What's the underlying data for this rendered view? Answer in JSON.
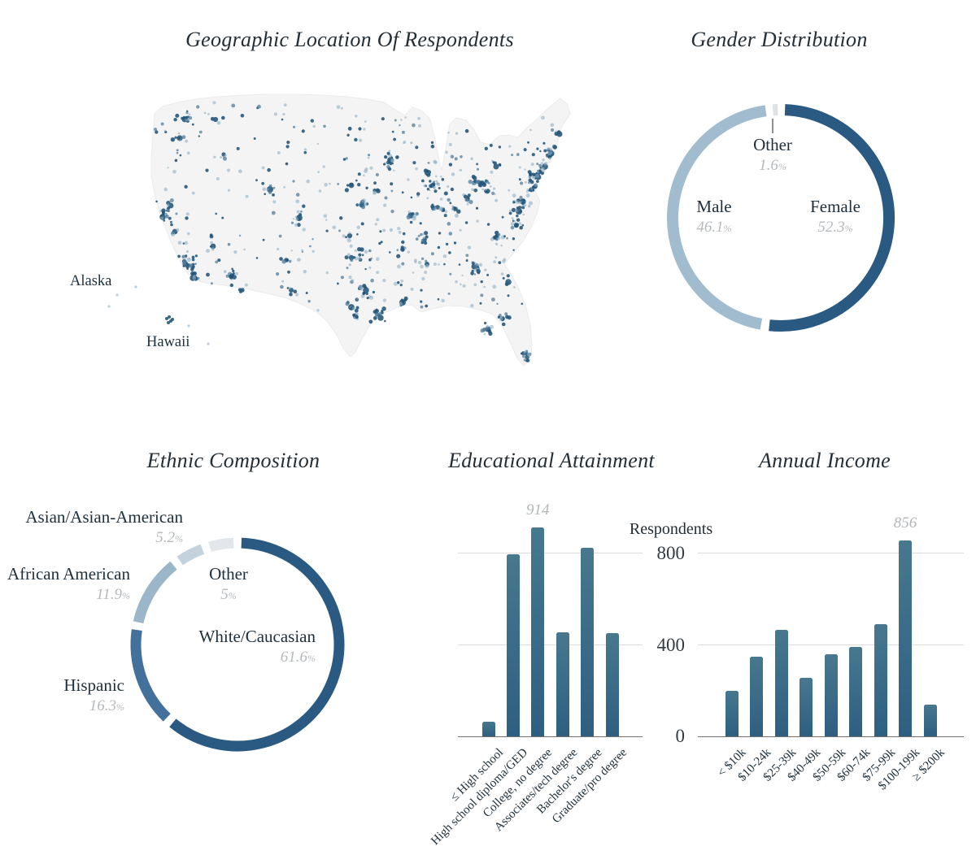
{
  "percent_sign": "%",
  "colors": {
    "donut_dark_blue": "#2a5a82",
    "donut_medium_blue": "#44719b",
    "donut_light_blue": "#a2bccf",
    "donut_pale_blue": "#c4d2dd",
    "donut_pale_gray": "#e3e7eb",
    "bar_top": "#47788e",
    "bar_bottom": "#2e5f81",
    "dot_dark": "#225479",
    "dot_light": "#8fafc3",
    "dot_mid": "#527e9c",
    "map_fill": "#f4f4f4",
    "gridline": "#dcdcdc",
    "axis_line": "#707070",
    "value_gray": "#b5b9bc"
  },
  "chart_data": [
    {
      "id": "geo_map",
      "type": "scatter",
      "title": "Geographic Location Of Respondents",
      "alaska_label": "Alaska",
      "hawaii_label": "Hawaii",
      "description": "Dot-density map of respondent locations across the contiguous United States, Alaska and Hawaii; dense clusters along the Northeast corridor, California coast, Texas metros, Florida and Midwest cities.",
      "clusters": [
        {
          "name": "seattle",
          "x": 187,
          "y": 62,
          "n": 12,
          "s": 5
        },
        {
          "name": "portland",
          "x": 181,
          "y": 85,
          "n": 8,
          "s": 4
        },
        {
          "name": "spokane",
          "x": 225,
          "y": 62,
          "n": 3,
          "s": 3
        },
        {
          "name": "san-francisco",
          "x": 160,
          "y": 182,
          "n": 18,
          "s": 6
        },
        {
          "name": "sacramento",
          "x": 170,
          "y": 168,
          "n": 6,
          "s": 4
        },
        {
          "name": "fresno",
          "x": 175,
          "y": 200,
          "n": 4,
          "s": 3
        },
        {
          "name": "los-angeles",
          "x": 188,
          "y": 240,
          "n": 26,
          "s": 8
        },
        {
          "name": "san-diego",
          "x": 197,
          "y": 257,
          "n": 9,
          "s": 4
        },
        {
          "name": "las-vegas",
          "x": 222,
          "y": 218,
          "n": 6,
          "s": 4
        },
        {
          "name": "phoenix",
          "x": 248,
          "y": 256,
          "n": 12,
          "s": 5
        },
        {
          "name": "tucson",
          "x": 258,
          "y": 272,
          "n": 4,
          "s": 3
        },
        {
          "name": "salt-lake-city",
          "x": 292,
          "y": 148,
          "n": 8,
          "s": 4
        },
        {
          "name": "boise",
          "x": 235,
          "y": 105,
          "n": 4,
          "s": 3
        },
        {
          "name": "denver",
          "x": 328,
          "y": 183,
          "n": 12,
          "s": 5
        },
        {
          "name": "albuquerque",
          "x": 312,
          "y": 235,
          "n": 5,
          "s": 4
        },
        {
          "name": "el-paso",
          "x": 318,
          "y": 272,
          "n": 4,
          "s": 3
        },
        {
          "name": "dallas",
          "x": 410,
          "y": 272,
          "n": 16,
          "s": 6
        },
        {
          "name": "austin",
          "x": 392,
          "y": 293,
          "n": 8,
          "s": 4
        },
        {
          "name": "san-antonio",
          "x": 397,
          "y": 304,
          "n": 9,
          "s": 4
        },
        {
          "name": "houston",
          "x": 428,
          "y": 306,
          "n": 15,
          "s": 6
        },
        {
          "name": "oklahoma-city",
          "x": 392,
          "y": 232,
          "n": 7,
          "s": 4
        },
        {
          "name": "tulsa",
          "x": 405,
          "y": 222,
          "n": 5,
          "s": 3
        },
        {
          "name": "wichita",
          "x": 390,
          "y": 205,
          "n": 4,
          "s": 3
        },
        {
          "name": "kansas-city",
          "x": 405,
          "y": 167,
          "n": 9,
          "s": 4
        },
        {
          "name": "omaha",
          "x": 392,
          "y": 143,
          "n": 5,
          "s": 3
        },
        {
          "name": "minneapolis",
          "x": 440,
          "y": 112,
          "n": 12,
          "s": 5
        },
        {
          "name": "des-moines",
          "x": 425,
          "y": 150,
          "n": 4,
          "s": 3
        },
        {
          "name": "st-louis",
          "x": 465,
          "y": 180,
          "n": 10,
          "s": 4
        },
        {
          "name": "memphis",
          "x": 455,
          "y": 222,
          "n": 8,
          "s": 4
        },
        {
          "name": "new-orleans",
          "x": 455,
          "y": 287,
          "n": 8,
          "s": 4
        },
        {
          "name": "nashville",
          "x": 482,
          "y": 210,
          "n": 9,
          "s": 4
        },
        {
          "name": "birmingham",
          "x": 485,
          "y": 240,
          "n": 6,
          "s": 4
        },
        {
          "name": "atlanta",
          "x": 543,
          "y": 243,
          "n": 16,
          "s": 6
        },
        {
          "name": "chicago",
          "x": 492,
          "y": 143,
          "n": 22,
          "s": 6
        },
        {
          "name": "milwaukee",
          "x": 485,
          "y": 128,
          "n": 6,
          "s": 3
        },
        {
          "name": "detroit",
          "x": 553,
          "y": 140,
          "n": 12,
          "s": 5
        },
        {
          "name": "indianapolis",
          "x": 498,
          "y": 170,
          "n": 8,
          "s": 4
        },
        {
          "name": "columbus",
          "x": 535,
          "y": 160,
          "n": 8,
          "s": 4
        },
        {
          "name": "cleveland",
          "x": 543,
          "y": 140,
          "n": 9,
          "s": 4
        },
        {
          "name": "cincinnati",
          "x": 520,
          "y": 172,
          "n": 7,
          "s": 4
        },
        {
          "name": "pittsburgh",
          "x": 560,
          "y": 150,
          "n": 9,
          "s": 4
        },
        {
          "name": "buffalo",
          "x": 570,
          "y": 120,
          "n": 6,
          "s": 3
        },
        {
          "name": "charlotte",
          "x": 570,
          "y": 207,
          "n": 10,
          "s": 4
        },
        {
          "name": "raleigh",
          "x": 595,
          "y": 192,
          "n": 8,
          "s": 4
        },
        {
          "name": "richmond",
          "x": 598,
          "y": 175,
          "n": 7,
          "s": 3
        },
        {
          "name": "washington-dc",
          "x": 603,
          "y": 163,
          "n": 14,
          "s": 5
        },
        {
          "name": "philadelphia",
          "x": 613,
          "y": 148,
          "n": 13,
          "s": 4
        },
        {
          "name": "new-york",
          "x": 622,
          "y": 133,
          "n": 28,
          "s": 7
        },
        {
          "name": "hartford",
          "x": 630,
          "y": 120,
          "n": 6,
          "s": 3
        },
        {
          "name": "boston",
          "x": 638,
          "y": 104,
          "n": 16,
          "s": 5
        },
        {
          "name": "portland-me",
          "x": 648,
          "y": 80,
          "n": 4,
          "s": 3
        },
        {
          "name": "jacksonville",
          "x": 585,
          "y": 262,
          "n": 7,
          "s": 4
        },
        {
          "name": "orlando",
          "x": 578,
          "y": 307,
          "n": 11,
          "s": 4
        },
        {
          "name": "tampa",
          "x": 560,
          "y": 320,
          "n": 11,
          "s": 4
        },
        {
          "name": "miami",
          "x": 608,
          "y": 355,
          "n": 14,
          "s": 5
        }
      ],
      "scatter_east_n": 250,
      "scatter_west_n": 130,
      "alaska_dots": [
        [
          127,
          268
        ],
        [
          104,
          278
        ],
        [
          94,
          292
        ]
      ],
      "hawaii_dots": [
        [
          165,
          307
        ],
        [
          170,
          310
        ],
        [
          167,
          312
        ],
        [
          172,
          308
        ],
        [
          168,
          305
        ],
        [
          192,
          316
        ],
        [
          216,
          338
        ]
      ]
    },
    {
      "id": "gender",
      "type": "pie",
      "title": "Gender Distribution",
      "legend_position": "inside",
      "segments": [
        {
          "label": "Female",
          "value": 52.3,
          "display": "52.3",
          "color": "#2a5a82"
        },
        {
          "label": "Male",
          "value": 46.1,
          "display": "46.1",
          "color": "#a2bccf"
        },
        {
          "label": "Other",
          "value": 1.6,
          "display": "1.6",
          "color": "#dde2e7"
        }
      ]
    },
    {
      "id": "ethnic",
      "type": "pie",
      "title": "Ethnic Composition",
      "legend_position": "around",
      "segments": [
        {
          "label": "White/Caucasian",
          "value": 61.6,
          "display": "61.6",
          "color": "#2a5a82"
        },
        {
          "label": "Hispanic",
          "value": 16.3,
          "display": "16.3",
          "color": "#44719b"
        },
        {
          "label": "African American",
          "value": 11.9,
          "display": "11.9",
          "color": "#9cb6c9"
        },
        {
          "label": "Asian/Asian-American",
          "value": 5.2,
          "display": "5.2",
          "color": "#c4d2dd"
        },
        {
          "label": "Other",
          "value": 5.0,
          "display": "5",
          "color": "#e3e7eb"
        }
      ]
    },
    {
      "id": "education",
      "type": "bar",
      "title": "Educational Attainment",
      "categories": [
        "≤ High school",
        "High school diploma/GED",
        "College, no degree",
        "Associates/tech degree",
        "Bachelor's degree",
        "Graduate/pro degree"
      ],
      "values": [
        65,
        795,
        914,
        455,
        825,
        450
      ],
      "data_labels": [
        {
          "category": "College, no degree",
          "text": "914"
        }
      ],
      "xlabel": "",
      "ylabel": "Respondents",
      "ylim": [
        0,
        950
      ],
      "yticks": [
        0,
        400,
        800
      ],
      "grid": true
    },
    {
      "id": "income",
      "type": "bar",
      "title": "Annual Income",
      "categories": [
        "< $10k",
        "$10-24k",
        "$25-39k",
        "$40-49k",
        "$50-59k",
        "$60-74k",
        "$75-99k",
        "$100-199k",
        "≥ $200k"
      ],
      "values": [
        200,
        350,
        465,
        255,
        360,
        390,
        490,
        856,
        140
      ],
      "data_labels": [
        {
          "category": "$100-199k",
          "text": "856"
        }
      ],
      "xlabel": "",
      "ylabel": "Respondents",
      "ylim": [
        0,
        950
      ],
      "yticks": [
        0,
        400,
        800
      ],
      "grid": true
    }
  ]
}
